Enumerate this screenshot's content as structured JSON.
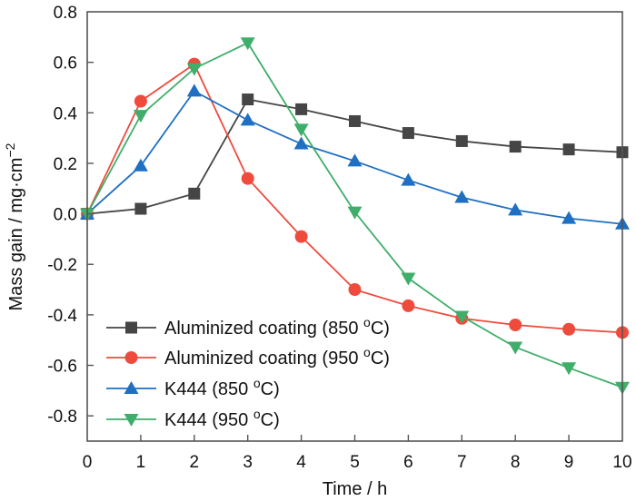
{
  "chart_data": {
    "type": "line",
    "title": "",
    "xlabel": "Time / h",
    "ylabel": "Mass gain / mg·cm",
    "ylabel_superscript": "−2",
    "xlim": [
      0,
      10
    ],
    "ylim": [
      -0.9,
      0.8
    ],
    "xticks": [
      0,
      1,
      2,
      3,
      4,
      5,
      6,
      7,
      8,
      9,
      10
    ],
    "xtick_labels": [
      "0",
      "1",
      "2",
      "3",
      "4",
      "5",
      "6",
      "7",
      "8",
      "9",
      "10"
    ],
    "yticks": [
      0.8,
      0.6,
      0.4,
      0.2,
      0.0,
      -0.2,
      -0.4,
      -0.6,
      -0.8
    ],
    "ytick_labels": [
      "0.8",
      "0.6",
      "0.4",
      "0.2",
      "0.0",
      "-0.2",
      "-0.4",
      "-0.6",
      "-0.8"
    ],
    "grid": false,
    "legend_position": "bottom-left",
    "x": [
      0,
      1,
      2,
      3,
      4,
      5,
      6,
      7,
      8,
      9,
      10
    ],
    "series": [
      {
        "name": "Aluminized coating (850 °C)",
        "label_main": "Aluminized coating (850 ",
        "label_sup": "o",
        "label_end": "C)",
        "color": "#454545",
        "marker": "square",
        "values": [
          0.0,
          0.02,
          0.08,
          0.453,
          0.414,
          0.367,
          0.32,
          0.288,
          0.266,
          0.255,
          0.244
        ]
      },
      {
        "name": "Aluminized coating (950 °C)",
        "label_main": "Aluminized coating (950 ",
        "label_sup": "o",
        "label_end": "C)",
        "color": "#ee4b3d",
        "marker": "circle",
        "values": [
          0.0,
          0.446,
          0.593,
          0.14,
          -0.09,
          -0.3,
          -0.364,
          -0.414,
          -0.44,
          -0.457,
          -0.47
        ]
      },
      {
        "name": "K444 (850 °C)",
        "label_main": "K444 (850 ",
        "label_sup": "o",
        "label_end": "C)",
        "color": "#1f6fc2",
        "marker": "triangle-up",
        "values": [
          0.0,
          0.19,
          0.486,
          0.371,
          0.277,
          0.209,
          0.133,
          0.065,
          0.015,
          -0.018,
          -0.04
        ]
      },
      {
        "name": "K444 (950 °C)",
        "label_main": "K444 (950 ",
        "label_sup": "o",
        "label_end": "C)",
        "color": "#3fae6a",
        "marker": "triangle-down",
        "values": [
          0.0,
          0.39,
          0.575,
          0.677,
          0.335,
          0.007,
          -0.255,
          -0.406,
          -0.528,
          -0.61,
          -0.687
        ]
      }
    ]
  }
}
